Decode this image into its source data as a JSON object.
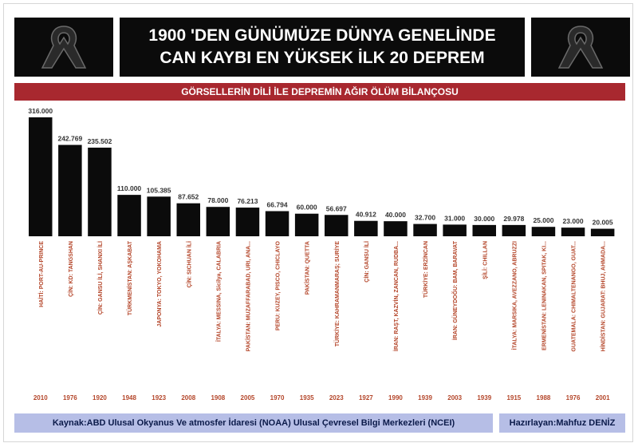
{
  "header": {
    "title_line1": "1900 'DEN GÜNÜMÜZE DÜNYA GENELİNDE",
    "title_line2": "CAN KAYBI EN YÜKSEK İLK 20 DEPREM",
    "left_icon": "black-ribbon-icon",
    "right_icon": "black-ribbon-icon"
  },
  "subtitle": "GÖRSELLERİN DİLİ İLE DEPREMİN AĞIR ÖLÜM BİLANÇOSU",
  "footer": {
    "source": "Kaynak:ABD Ulusal Okyanus Ve atmosfer İdaresi (NOAA) Ulusal Çevresel Bilgi Merkezleri (NCEI)",
    "author": "Hazırlayan:Mahfuz DENİZ"
  },
  "colors": {
    "bar": "#0b0b0b",
    "category_label": "#b4462a",
    "year_label": "#b4462a",
    "value_label": "#333333",
    "subtitle_bar": "#a8282f",
    "footer_bar": "#b6bee6"
  },
  "chart_data": {
    "type": "bar",
    "categories": [
      "HAİTİ: PORT-AU-PRINCE",
      "ÇİN: KD: TANGSHAN",
      "ÇİN: GANSU İLİ, SHANXI İLİ",
      "TÜRKMENİSTAN: AŞKABAT",
      "JAPONYA: TOKYO, YOKOHAMA",
      "ÇİN: SICHUAN İLİ",
      "İTALYA: MESSINA, Sicilya, CALABRIA",
      "PAKİSTAN: MUZAFFARABAD, URI, ANA...",
      "PERU: KUZEY, PISCO, CHICLAYO",
      "PAKİSTAN: QUETTA",
      "TÜRKİYE: KAHRAMANMARAŞ; SURİYE",
      "ÇİN: GANSU İLİ",
      "İRAN: RAŞT, KAZVİN, ZANCAN, RUDBA...",
      "TÜRKİYE: ERZİNCAN",
      "İRAN: GÜNEYDOĞU: BAM, BARAVAT",
      "ŞİLİ: CHILLAN",
      "İTALYA: MARSIKA, AVEZZANO, ABRUZZI",
      "ERMENİSTAN: LENINAKAN, SPITAK, KI...",
      "GUATEMALA: CHIMALTENANGO, GUAT...",
      "HİNDİSTAN: GUJARAT: BHUJ, AHMADA..."
    ],
    "years": [
      "2010",
      "1976",
      "1920",
      "1948",
      "1923",
      "2008",
      "1908",
      "2005",
      "1970",
      "1935",
      "2023",
      "1927",
      "1990",
      "1939",
      "2003",
      "1939",
      "1915",
      "1988",
      "1976",
      "2001"
    ],
    "values": [
      316000,
      242769,
      235502,
      110000,
      105385,
      87652,
      78000,
      76213,
      66794,
      60000,
      56697,
      40912,
      40000,
      32700,
      31000,
      30000,
      29978,
      25000,
      23000,
      20005
    ],
    "value_labels": [
      "316.000",
      "242.769",
      "235.502",
      "110.000",
      "105.385",
      "87.652",
      "78.000",
      "76.213",
      "66.794",
      "60.000",
      "56.697",
      "40.912",
      "40.000",
      "32.700",
      "31.000",
      "30.000",
      "29.978",
      "25.000",
      "23.000",
      "20.005"
    ],
    "ylim": [
      0,
      316000
    ],
    "grid": false,
    "legend": "none"
  }
}
